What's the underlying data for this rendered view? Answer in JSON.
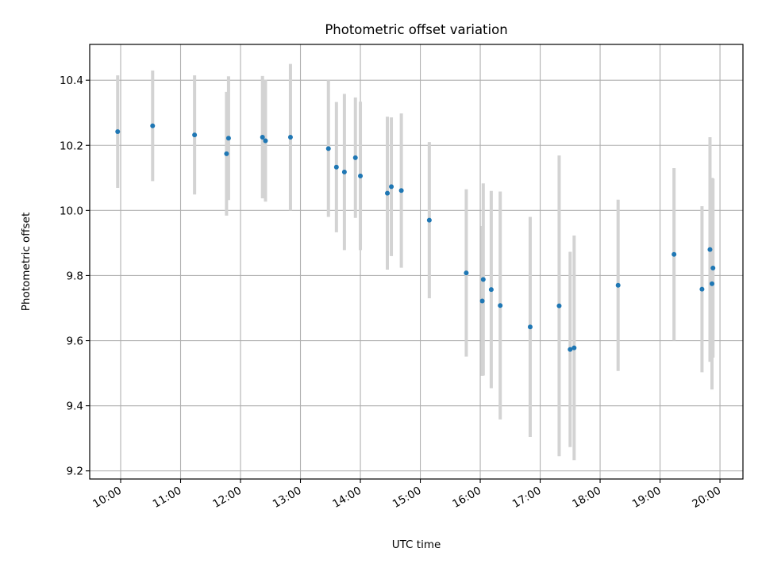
{
  "chart_data": {
    "type": "scatter",
    "title": "Photometric offset variation",
    "xlabel": "UTC time",
    "ylabel": "Photometric offset",
    "x_ticks": [
      "10:00",
      "11:00",
      "12:00",
      "13:00",
      "14:00",
      "15:00",
      "16:00",
      "17:00",
      "18:00",
      "19:00",
      "20:00"
    ],
    "y_ticks": [
      "9.2",
      "9.4",
      "9.6",
      "9.8",
      "10.0",
      "10.2",
      "10.4"
    ],
    "xlim": [
      "09:29",
      "20:23"
    ],
    "ylim": [
      9.175,
      10.51
    ],
    "grid": true,
    "marker_color": "#1f77b4",
    "errorbar_color": "#d3d3d3",
    "points": [
      {
        "t": "09:57",
        "y": 10.242,
        "err": 0.173
      },
      {
        "t": "10:32",
        "y": 10.26,
        "err": 0.17
      },
      {
        "t": "11:14",
        "y": 10.232,
        "err": 0.183
      },
      {
        "t": "11:46",
        "y": 10.174,
        "err": 0.19
      },
      {
        "t": "11:48",
        "y": 10.222,
        "err": 0.19
      },
      {
        "t": "12:22",
        "y": 10.225,
        "err": 0.188
      },
      {
        "t": "12:25",
        "y": 10.214,
        "err": 0.187
      },
      {
        "t": "12:50",
        "y": 10.225,
        "err": 0.225
      },
      {
        "t": "13:28",
        "y": 10.19,
        "err": 0.21
      },
      {
        "t": "13:36",
        "y": 10.133,
        "err": 0.2
      },
      {
        "t": "13:44",
        "y": 10.118,
        "err": 0.24
      },
      {
        "t": "13:55",
        "y": 10.162,
        "err": 0.185
      },
      {
        "t": "14:00",
        "y": 10.106,
        "err": 0.228
      },
      {
        "t": "14:27",
        "y": 10.053,
        "err": 0.235
      },
      {
        "t": "14:31",
        "y": 10.073,
        "err": 0.213
      },
      {
        "t": "14:41",
        "y": 10.061,
        "err": 0.237
      },
      {
        "t": "15:09",
        "y": 9.97,
        "err": 0.24
      },
      {
        "t": "15:46",
        "y": 9.808,
        "err": 0.257
      },
      {
        "t": "16:02",
        "y": 9.722,
        "err": 0.23
      },
      {
        "t": "16:03",
        "y": 9.788,
        "err": 0.295
      },
      {
        "t": "16:11",
        "y": 9.757,
        "err": 0.303
      },
      {
        "t": "16:20",
        "y": 9.708,
        "err": 0.35
      },
      {
        "t": "16:50",
        "y": 9.642,
        "err": 0.338
      },
      {
        "t": "17:19",
        "y": 9.707,
        "err": 0.462
      },
      {
        "t": "17:30",
        "y": 9.573,
        "err": 0.3
      },
      {
        "t": "17:34",
        "y": 9.578,
        "err": 0.345
      },
      {
        "t": "18:18",
        "y": 9.77,
        "err": 0.263
      },
      {
        "t": "19:14",
        "y": 9.865,
        "err": 0.265
      },
      {
        "t": "19:42",
        "y": 9.758,
        "err": 0.255
      },
      {
        "t": "19:50",
        "y": 9.88,
        "err": 0.345
      },
      {
        "t": "19:52",
        "y": 9.775,
        "err": 0.325
      },
      {
        "t": "19:53",
        "y": 9.823,
        "err": 0.275
      }
    ]
  }
}
